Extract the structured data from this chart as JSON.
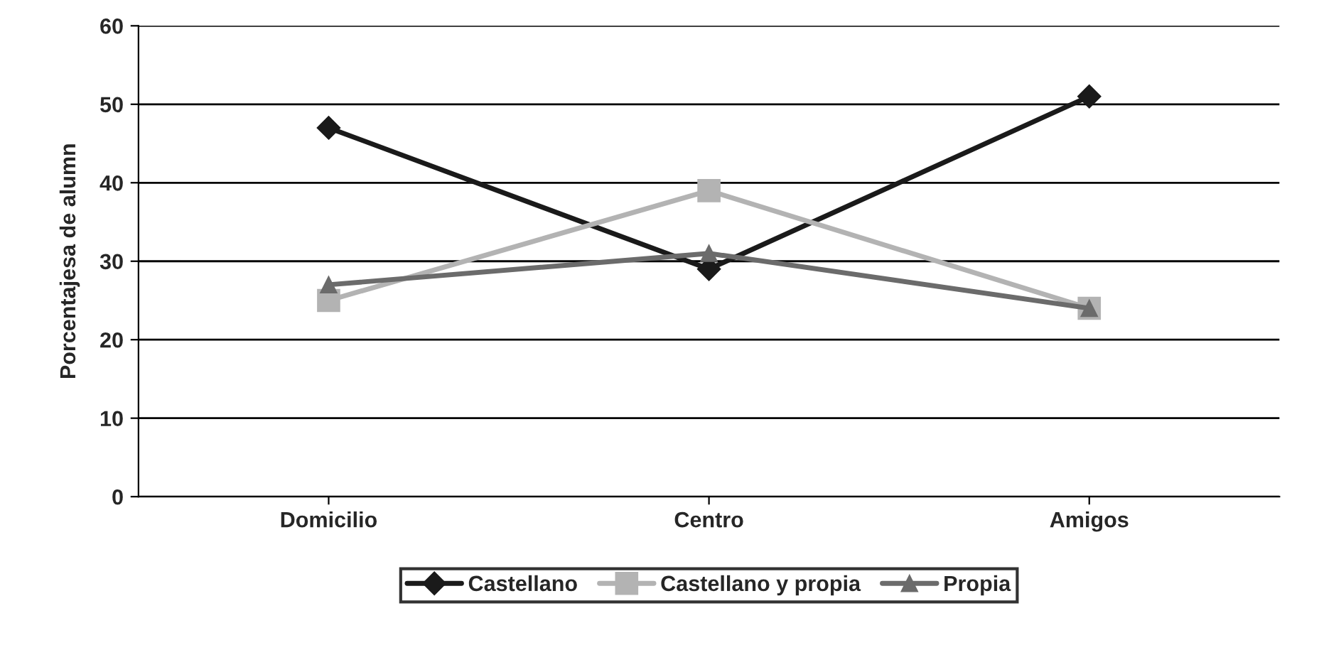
{
  "chart_data": {
    "type": "line",
    "ylabel": "Porcentajesa de alumn",
    "categories": [
      "Domicilio",
      "Centro",
      "Amigos"
    ],
    "series": [
      {
        "name": "Castellano",
        "color": "#1a1a1a",
        "marker": "diamond",
        "values": [
          47,
          29,
          51
        ]
      },
      {
        "name": "Castellano y propia",
        "color": "#b3b3b3",
        "marker": "square",
        "values": [
          25,
          39,
          24
        ]
      },
      {
        "name": "Propia",
        "color": "#6b6b6b",
        "marker": "triangle",
        "values": [
          27,
          31,
          24
        ]
      }
    ],
    "ylim": [
      0,
      60
    ],
    "yticks": [
      0,
      10,
      20,
      30,
      40,
      50,
      60
    ],
    "grid": "y",
    "legend": "bottom",
    "line_style": "solid"
  }
}
